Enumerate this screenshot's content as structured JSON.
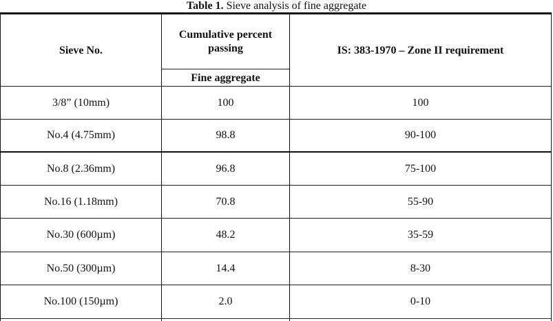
{
  "caption": {
    "label": "Table 1.",
    "text": " Sieve analysis of fine aggregate"
  },
  "table": {
    "headers": {
      "sieve": "Sieve No.",
      "cumulative": "Cumulative percent passing",
      "subheader": "Fine aggregate",
      "requirement": "IS: 383-1970 – Zone II requirement"
    },
    "rows": [
      {
        "sieve": "3/8” (10mm)",
        "passing": "100",
        "requirement": "100"
      },
      {
        "sieve": "No.4 (4.75mm)",
        "passing": "98.8",
        "requirement": "90-100"
      },
      {
        "sieve": "No.8 (2.36mm)",
        "passing": "96.8",
        "requirement": "75-100"
      },
      {
        "sieve": "No.16 (1.18mm)",
        "passing": "70.8",
        "requirement": "55-90"
      },
      {
        "sieve": "No.30 (600µm)",
        "passing": "48.2",
        "requirement": "35-59"
      },
      {
        "sieve": "No.50 (300µm)",
        "passing": "14.4",
        "requirement": "8-30"
      },
      {
        "sieve": "No.100 (150µm)",
        "passing": "2.0",
        "requirement": "0-10"
      }
    ]
  }
}
